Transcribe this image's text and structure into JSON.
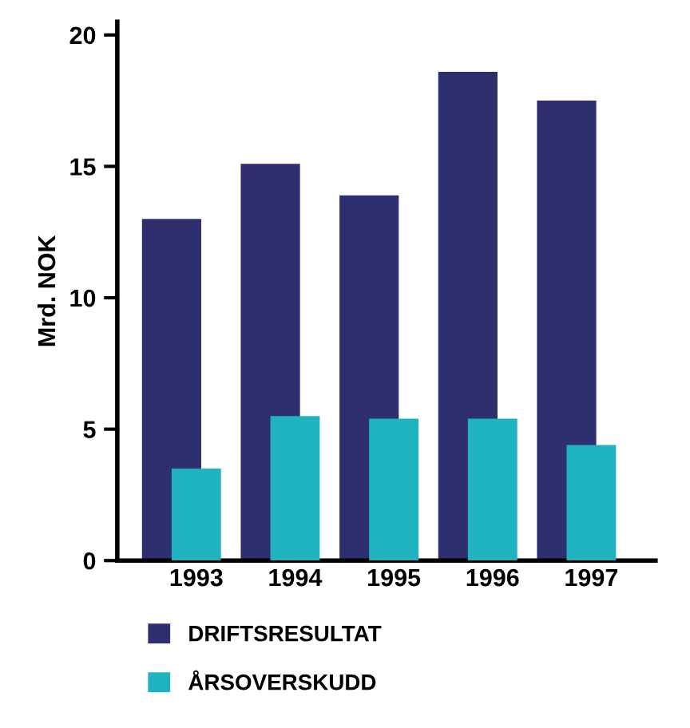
{
  "chart_data": {
    "type": "bar",
    "ylabel": "Mrd. NOK",
    "categories": [
      "1993",
      "1994",
      "1995",
      "1996",
      "1997"
    ],
    "series": [
      {
        "name": "DRIFTSRESULTAT",
        "color": "#2e2f6e",
        "values": [
          13.0,
          15.1,
          13.9,
          18.6,
          17.5
        ]
      },
      {
        "name": "ÅRSOVERSKUDD",
        "color": "#1fb3c0",
        "values": [
          3.5,
          5.5,
          5.4,
          5.4,
          4.4
        ]
      }
    ],
    "ylim": [
      0,
      20.5
    ],
    "yticks": [
      0,
      5,
      10,
      15,
      20
    ],
    "grid": false,
    "legend": "bottom"
  }
}
